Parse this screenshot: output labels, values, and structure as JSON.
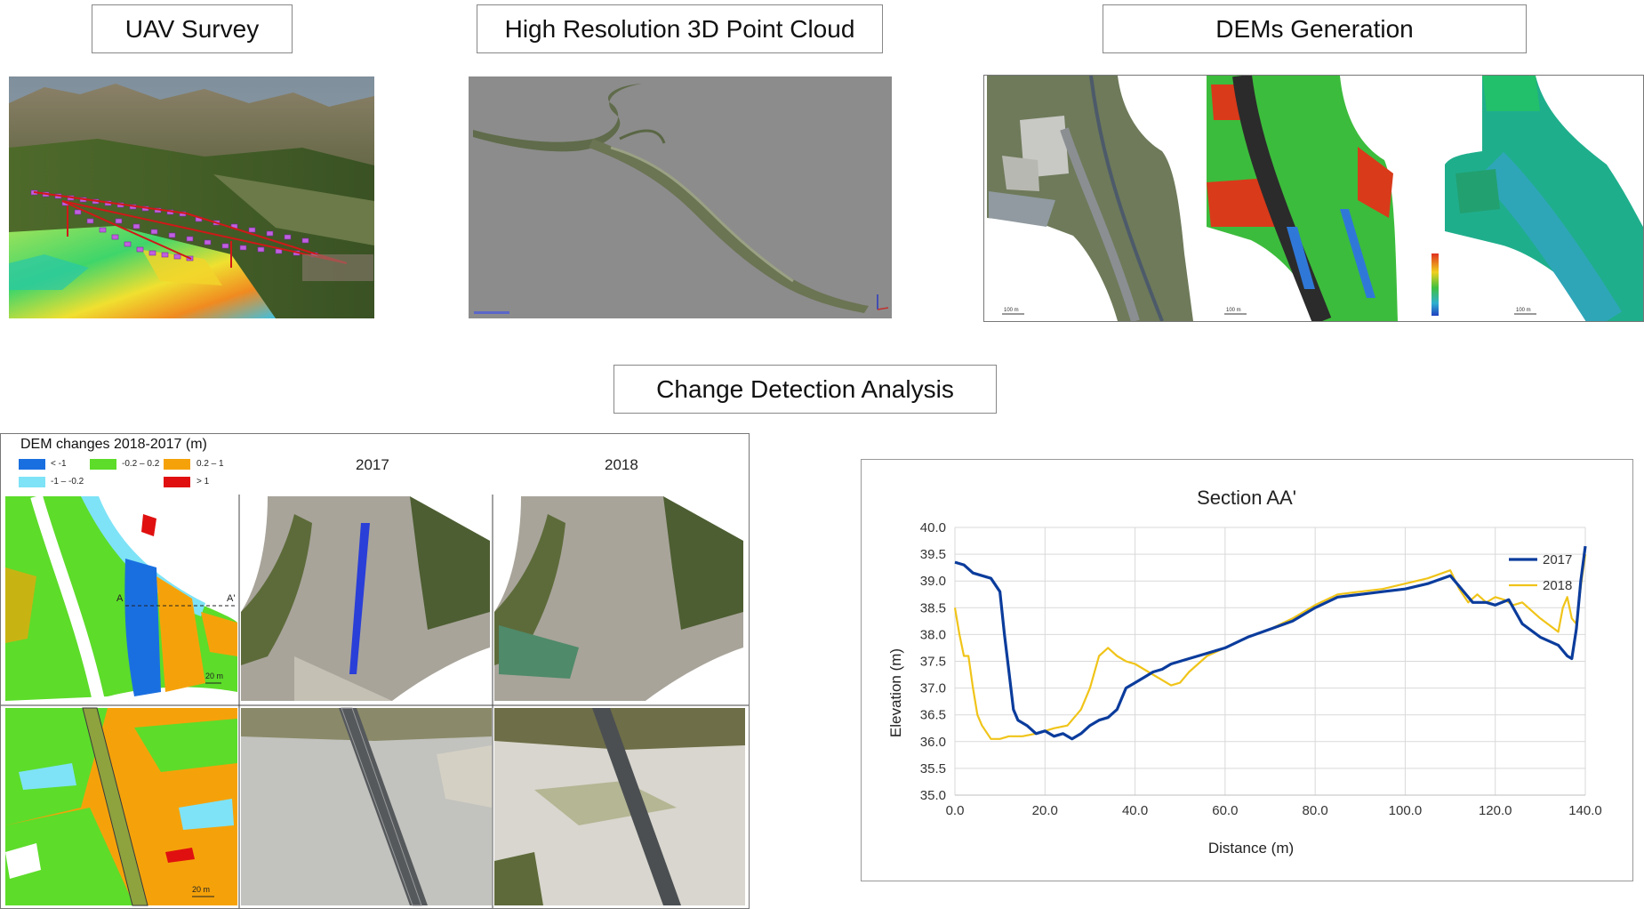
{
  "titles": {
    "uav": "UAV Survey",
    "pointcloud": "High Resolution 3D Point Cloud",
    "dems": "DEMs Generation",
    "change": "Change Detection Analysis"
  },
  "dem_panel": {
    "scale_labels": [
      "100 m",
      "100 m",
      "100 m"
    ]
  },
  "change_panel": {
    "legend_title": "DEM changes 2018-2017 (m)",
    "legend": [
      {
        "label": "< -1",
        "color": "#1a6fe0"
      },
      {
        "label": "-0.2 – 0.2",
        "color": "#5ddc2a"
      },
      {
        "label": "0.2 – 1",
        "color": "#f5a20a"
      },
      {
        "label": "-1 – -0.2",
        "color": "#7ee3f7"
      },
      {
        "label": "> 1",
        "color": "#e01010"
      }
    ],
    "col_2017": "2017",
    "col_2018": "2018",
    "section_a": "A",
    "section_a2": "A'",
    "scale_top": "20 m",
    "scale_bottom": "20 m"
  },
  "chart_data": {
    "type": "line",
    "title": "Section AA'",
    "xlabel": "Distance (m)",
    "ylabel": "Elevation (m)",
    "xlim": [
      0,
      140
    ],
    "ylim": [
      35,
      40
    ],
    "x_ticks": [
      "0.0",
      "20.0",
      "40.0",
      "60.0",
      "80.0",
      "100.0",
      "120.0",
      "140.0"
    ],
    "y_ticks": [
      "35.0",
      "35.5",
      "36.0",
      "36.5",
      "37.0",
      "37.5",
      "38.0",
      "38.5",
      "39.0",
      "39.5",
      "40.0"
    ],
    "grid": true,
    "legend_position": "top-right",
    "series": [
      {
        "name": "2017",
        "color": "#0b3c9c",
        "x": [
          0,
          2,
          4,
          6,
          8,
          10,
          11,
          12,
          13,
          14,
          16,
          18,
          20,
          22,
          24,
          26,
          28,
          30,
          32,
          34,
          36,
          38,
          40,
          42,
          44,
          46,
          48,
          50,
          52,
          56,
          60,
          65,
          70,
          75,
          80,
          85,
          90,
          95,
          100,
          105,
          110,
          112,
          115,
          118,
          120,
          123,
          126,
          130,
          134,
          136,
          137,
          138,
          139,
          140
        ],
        "y": [
          39.35,
          39.3,
          39.15,
          39.1,
          39.05,
          38.8,
          38.0,
          37.3,
          36.6,
          36.4,
          36.3,
          36.15,
          36.2,
          36.1,
          36.15,
          36.05,
          36.15,
          36.3,
          36.4,
          36.45,
          36.6,
          37.0,
          37.1,
          37.2,
          37.3,
          37.35,
          37.45,
          37.5,
          37.55,
          37.65,
          37.75,
          37.95,
          38.1,
          38.25,
          38.5,
          38.7,
          38.75,
          38.8,
          38.85,
          38.95,
          39.1,
          38.9,
          38.6,
          38.6,
          38.55,
          38.65,
          38.2,
          37.95,
          37.8,
          37.6,
          37.55,
          38.1,
          39.0,
          39.65
        ]
      },
      {
        "name": "2018",
        "color": "#f0c419",
        "x": [
          0,
          1,
          2,
          3,
          4,
          5,
          6,
          8,
          10,
          12,
          15,
          18,
          20,
          22,
          25,
          28,
          30,
          32,
          34,
          36,
          38,
          40,
          42,
          44,
          46,
          48,
          50,
          52,
          56,
          60,
          65,
          70,
          75,
          80,
          85,
          90,
          95,
          100,
          105,
          110,
          112,
          114,
          116,
          118,
          120,
          122,
          124,
          126,
          130,
          134,
          135,
          136,
          137,
          138,
          139,
          140
        ],
        "y": [
          38.5,
          38.0,
          37.6,
          37.6,
          37.0,
          36.5,
          36.3,
          36.05,
          36.05,
          36.1,
          36.1,
          36.15,
          36.2,
          36.25,
          36.3,
          36.6,
          37.0,
          37.6,
          37.75,
          37.6,
          37.5,
          37.45,
          37.35,
          37.25,
          37.15,
          37.05,
          37.1,
          37.3,
          37.6,
          37.75,
          37.95,
          38.1,
          38.3,
          38.55,
          38.75,
          38.8,
          38.85,
          38.95,
          39.05,
          39.2,
          38.85,
          38.6,
          38.75,
          38.6,
          38.7,
          38.65,
          38.55,
          38.6,
          38.3,
          38.05,
          38.5,
          38.7,
          38.3,
          38.2,
          38.9,
          39.5
        ]
      }
    ]
  }
}
